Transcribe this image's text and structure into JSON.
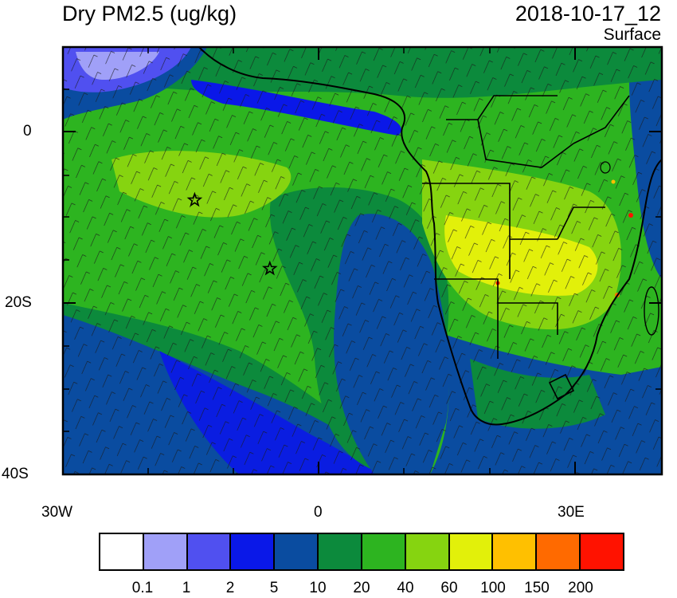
{
  "title": "Dry PM2.5 (ug/kg)",
  "timestamp": "2018-10-17_12",
  "level": "Surface",
  "lat_labels": [
    "0",
    "20S",
    "40S"
  ],
  "lon_labels": [
    "30W",
    "0",
    "30E"
  ],
  "colorbar": {
    "colors": [
      "#ffffff",
      "#a0a0f8",
      "#5050f0",
      "#0a18e8",
      "#0a4ca0",
      "#0c8a3c",
      "#2db420",
      "#86d410",
      "#e2f00a",
      "#ffc000",
      "#ff6a00",
      "#ff1200"
    ],
    "labels": [
      "0.1",
      "1",
      "2",
      "5",
      "10",
      "20",
      "40",
      "60",
      "100",
      "150",
      "200"
    ]
  },
  "markers": [
    {
      "name": "star",
      "lon": -14.5,
      "lat": -8
    },
    {
      "name": "star",
      "lon": -5.7,
      "lat": -16
    }
  ]
}
